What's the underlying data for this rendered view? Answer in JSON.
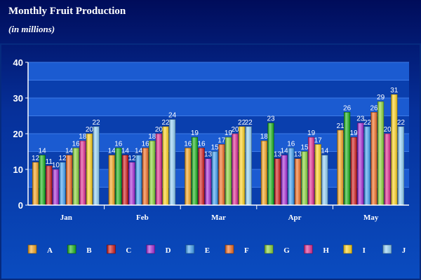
{
  "colors": {
    "background_top": "#000c5a",
    "background_bottom": "#0a4cc0",
    "plot_bg": "#0a3fae",
    "band_light": "#1b5bd1",
    "gridline": "#3d7be8",
    "axis": "#ffffff",
    "text": "#ffffff"
  },
  "chart_data": {
    "type": "bar",
    "title": "Monthly Fruit Production",
    "subtitle": "(in millions)",
    "xlabel": "",
    "ylabel": "",
    "ylim": [
      0,
      40
    ],
    "yticks": [
      0,
      10,
      20,
      30,
      40
    ],
    "grid": true,
    "legend_position": "bottom",
    "categories": [
      "Jan",
      "Feb",
      "Mar",
      "Apr",
      "May"
    ],
    "series": [
      {
        "name": "A",
        "color": "#f5a319",
        "values": [
          12,
          14,
          16,
          18,
          21
        ]
      },
      {
        "name": "B",
        "color": "#16b016",
        "values": [
          14,
          16,
          19,
          23,
          26
        ]
      },
      {
        "name": "C",
        "color": "#d01818",
        "values": [
          11,
          14,
          16,
          13,
          19
        ]
      },
      {
        "name": "D",
        "color": "#a628d6",
        "values": [
          10,
          12,
          13,
          14,
          23
        ]
      },
      {
        "name": "E",
        "color": "#3d9ef2",
        "values": [
          12,
          14,
          15,
          16,
          22
        ]
      },
      {
        "name": "F",
        "color": "#f26a1c",
        "values": [
          14,
          16,
          17,
          13,
          26
        ]
      },
      {
        "name": "G",
        "color": "#86d233",
        "values": [
          16,
          18,
          19,
          15,
          29
        ]
      },
      {
        "name": "H",
        "color": "#e0278f",
        "values": [
          18,
          20,
          20,
          19,
          20
        ]
      },
      {
        "name": "I",
        "color": "#ffd21a",
        "values": [
          20,
          22,
          22,
          17,
          31
        ]
      },
      {
        "name": "J",
        "color": "#8fd0f7",
        "values": [
          22,
          24,
          22,
          14,
          22
        ]
      }
    ]
  }
}
